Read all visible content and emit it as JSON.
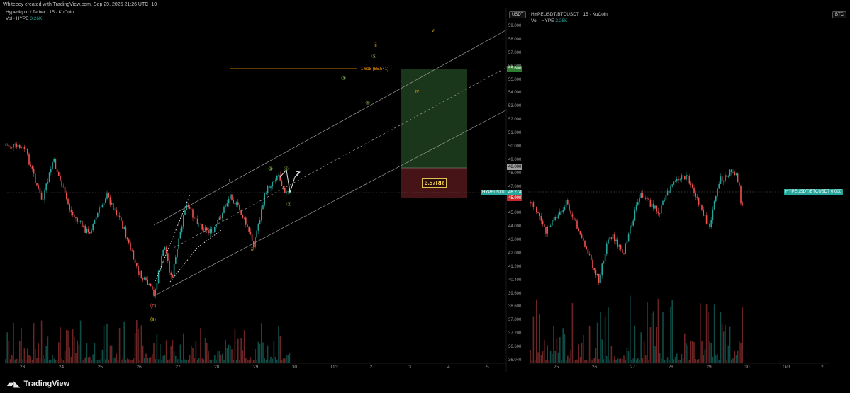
{
  "header": {
    "caption": "Whiteeey created with TradingView.com, Sep 29, 2025 21:26 UTC+10"
  },
  "left_pane": {
    "title": "Hyperliquid / Tether · 15 · KuCoin",
    "vol_label": "Vol · HYPE",
    "vol_value": "3.26K",
    "currency": "USDT",
    "price_ticks": [
      "59.000",
      "58.000",
      "57.000",
      "56.000",
      "55.000",
      "54.000",
      "53.000",
      "52.000",
      "51.000",
      "50.000",
      "49.000",
      "48.000",
      "47.000",
      "46.000",
      "45.000",
      "44.000",
      "43.000",
      "42.000",
      "41.200",
      "40.400",
      "39.600",
      "38.600",
      "37.800",
      "37.200",
      "36.600",
      "36.040"
    ],
    "time_ticks": [
      "23",
      "24",
      "25",
      "26",
      "27",
      "28",
      "29",
      "30",
      "Oct",
      "2",
      "3",
      "4",
      "5"
    ],
    "tags": {
      "target": "55.600",
      "entry": "48.000",
      "symbol": "HYPEUSDT",
      "last": "46.274",
      "stop": "45.900"
    },
    "fib_label": "1.618 (55.541)",
    "rr_label": "3.57RR",
    "wave_labels": {
      "c": "(c)",
      "ii_paren": "(ii)",
      "i": "i",
      "ii": "ii",
      "iii": "iii",
      "iv": "iv",
      "v": "v",
      "c1": "①",
      "c2": "②",
      "c3": "③",
      "c4": "④",
      "c5": "⑤",
      "c3b": "③",
      "c4b": "④"
    }
  },
  "right_pane": {
    "title": "HYPEUSDT/BTCUSDT · 15 · KuCoin",
    "vol_label": "Vol · HYPE",
    "vol_value": "3.26K",
    "currency": "BTC",
    "symbol_tag": "HYPEUSDT/BTCUSDT",
    "last": "0.000",
    "time_ticks": [
      "25",
      "26",
      "27",
      "28",
      "29",
      "30",
      "Oct",
      "2"
    ]
  },
  "footer": {
    "brand": "TradingView"
  },
  "colors": {
    "up": "#26a69a",
    "down": "#ef5350",
    "wave": "#d4a017",
    "fib": "#ff9800",
    "profit": "#1e3a1e",
    "loss": "#4a1416"
  }
}
